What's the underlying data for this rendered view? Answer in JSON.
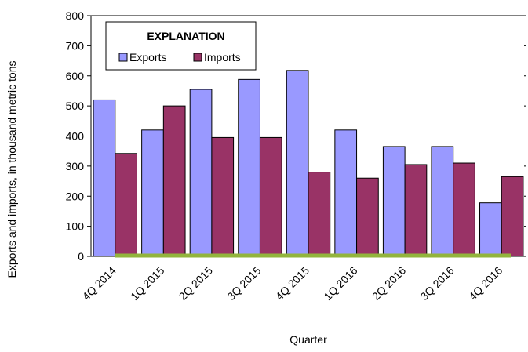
{
  "chart_data": {
    "type": "bar",
    "title": "",
    "xlabel": "Quarter",
    "ylabel": "Exports and imports, in thousand metric tons",
    "ylim": [
      0,
      800
    ],
    "yticks": [
      0,
      100,
      200,
      300,
      400,
      500,
      600,
      700,
      800
    ],
    "categories": [
      "4Q 2014",
      "1Q 2015",
      "2Q 2015",
      "3Q 2015",
      "4Q 2015",
      "1Q 2016",
      "2Q 2016",
      "3Q 2016",
      "4Q 2016"
    ],
    "series": [
      {
        "name": "Exports",
        "color": "#9999ff",
        "values": [
          520,
          420,
          555,
          588,
          618,
          420,
          365,
          365,
          178
        ]
      },
      {
        "name": "Imports",
        "color": "#993366",
        "values": [
          342,
          500,
          395,
          395,
          280,
          260,
          305,
          310,
          265
        ]
      }
    ],
    "legend": {
      "title": "EXPLANATION",
      "position": "top-left"
    },
    "grid": false,
    "baseline_color": "#92b43c"
  }
}
